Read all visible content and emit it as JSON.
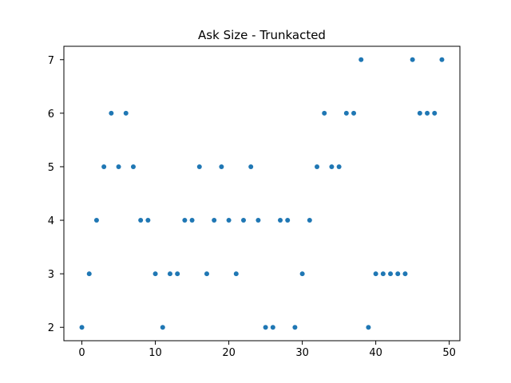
{
  "chart_data": {
    "type": "scatter",
    "title": "Ask Size - Trunkacted",
    "xlabel": "",
    "ylabel": "",
    "xlim": [
      -2.45,
      51.45
    ],
    "ylim": [
      1.75,
      7.25
    ],
    "xticks": [
      0,
      10,
      20,
      30,
      40,
      50
    ],
    "yticks": [
      2,
      3,
      4,
      5,
      6,
      7
    ],
    "grid": false,
    "marker_color": "#1f77b4",
    "series": [
      {
        "x": [
          0,
          1,
          2,
          3,
          4,
          5,
          6,
          7,
          8,
          9,
          10,
          11,
          12,
          13,
          14,
          15,
          16,
          17,
          18,
          19,
          20,
          21,
          22,
          23,
          24,
          25,
          26,
          27,
          28,
          29,
          30,
          31,
          32,
          33,
          34,
          35,
          36,
          37,
          38,
          39,
          40,
          41,
          42,
          43,
          44,
          45,
          46,
          47,
          48,
          49
        ],
        "y": [
          2,
          3,
          4,
          5,
          6,
          5,
          6,
          5,
          4,
          4,
          3,
          2,
          3,
          3,
          4,
          4,
          5,
          3,
          4,
          5,
          4,
          3,
          4,
          5,
          4,
          2,
          2,
          4,
          4,
          2,
          3,
          4,
          5,
          6,
          5,
          5,
          6,
          6,
          7,
          2,
          3,
          3,
          3,
          3,
          3,
          7,
          6,
          6,
          6,
          7
        ]
      }
    ]
  }
}
